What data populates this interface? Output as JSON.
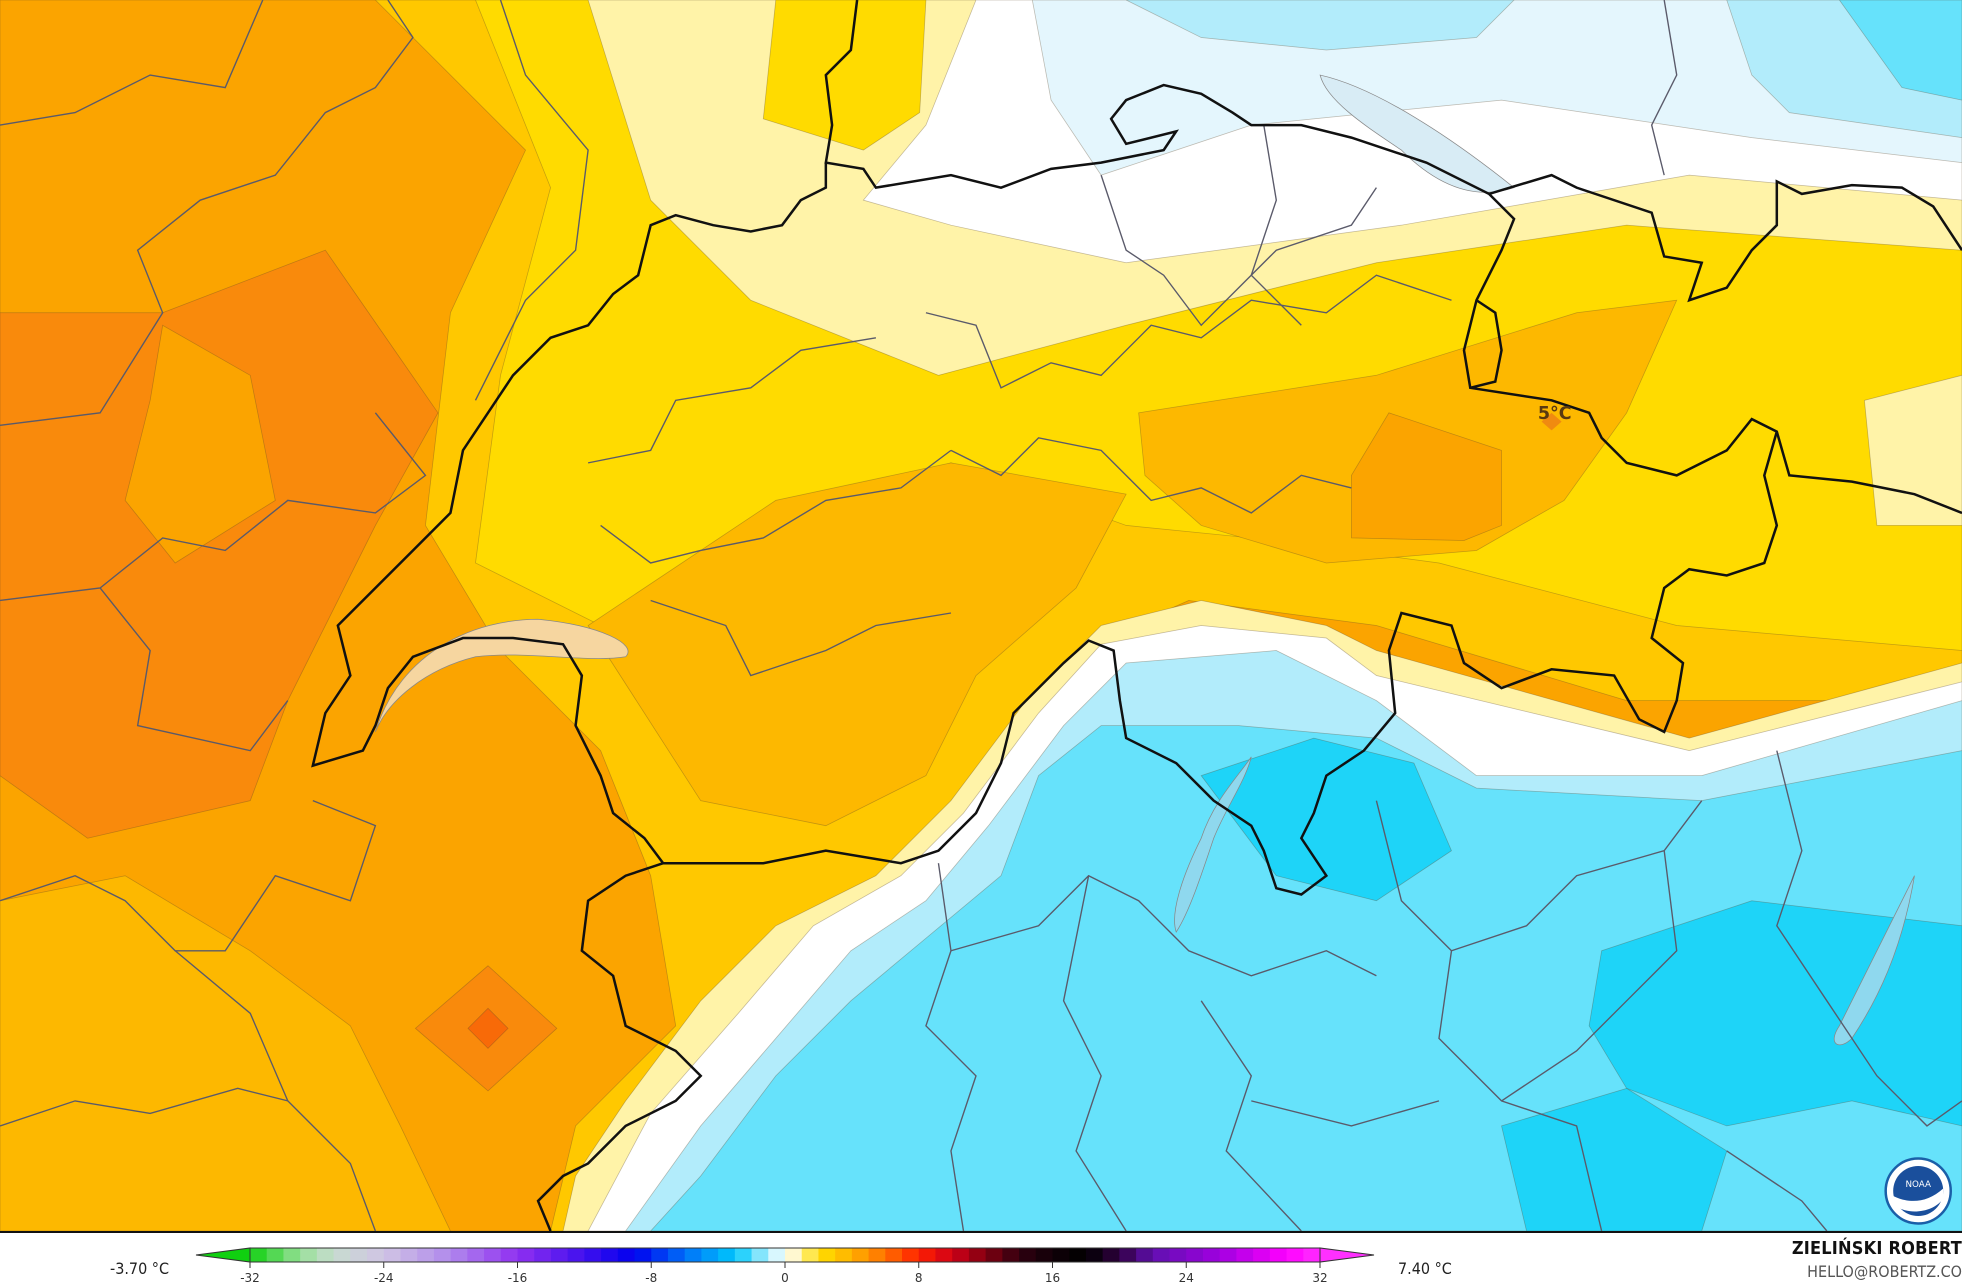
{
  "map": {
    "point_label": "5°C",
    "logo": "NOAA",
    "field_colors": {
      "dark_orange": "#f98a0c",
      "orange": "#fba400",
      "light_orange": "#fdb800",
      "yellow_orange": "#ffc800",
      "yellow": "#ffdb00",
      "pale_yellow": "#fff3a8",
      "white": "#ffffff",
      "very_light_blue": "#e4f6fd",
      "light_blue": "#b2ecfb",
      "cyan": "#66e2fb",
      "deep_cyan": "#1ed4f8",
      "hot_spot": "#f86a08"
    }
  },
  "legend": {
    "min_label": "-3.70 °C",
    "max_label": "7.40 °C",
    "ticks": [
      "-32",
      "-24",
      "-16",
      "-8",
      "0",
      "8",
      "16",
      "24",
      "32"
    ],
    "tick_values": [
      -32,
      -24,
      -16,
      -8,
      0,
      8,
      16,
      24,
      32
    ],
    "range": [
      -32,
      32
    ],
    "colormap": [
      [
        -32,
        "#10d010"
      ],
      [
        -29,
        "#98e098"
      ],
      [
        -27,
        "#c8dcd0"
      ],
      [
        -24,
        "#d0c4e4"
      ],
      [
        -20,
        "#b088ec"
      ],
      [
        -16,
        "#9030f0"
      ],
      [
        -12,
        "#4010ee"
      ],
      [
        -9,
        "#0000ee"
      ],
      [
        -6,
        "#0070f8"
      ],
      [
        -3,
        "#00c8fc"
      ],
      [
        -1,
        "#b0eefc"
      ],
      [
        0,
        "#ffffff"
      ],
      [
        1,
        "#fff0a0"
      ],
      [
        2,
        "#ffe000"
      ],
      [
        4,
        "#ffb000"
      ],
      [
        6,
        "#ff7000"
      ],
      [
        8,
        "#ff2000"
      ],
      [
        10,
        "#d00018"
      ],
      [
        12,
        "#800010"
      ],
      [
        14,
        "#300010"
      ],
      [
        16,
        "#100008"
      ],
      [
        18,
        "#000000"
      ],
      [
        20,
        "#300040"
      ],
      [
        22,
        "#6010b0"
      ],
      [
        26,
        "#a000e0"
      ],
      [
        30,
        "#ff00ff"
      ],
      [
        32,
        "#ff30ff"
      ]
    ]
  },
  "credits": {
    "author": "ZIELIŃSKI ROBERT",
    "email": "HELLO@ROBERTZ.CO"
  }
}
